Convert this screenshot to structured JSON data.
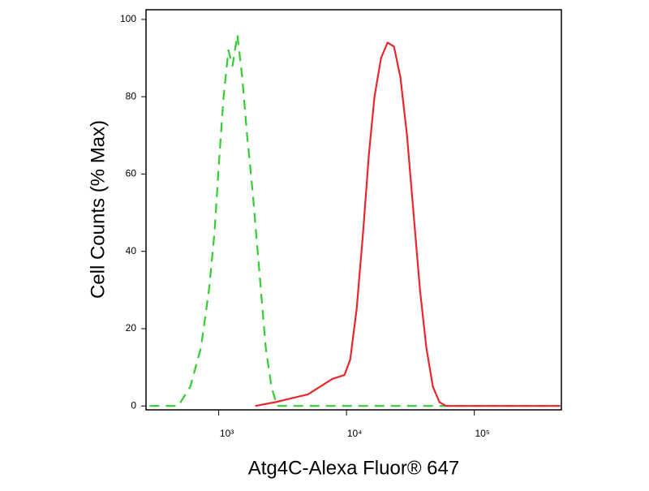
{
  "chart_data": {
    "type": "line",
    "xlabel": "Atg4C-Alexa Fluor® 647",
    "ylabel": "Cell Counts (% Max)",
    "xscale": "log",
    "xlim": [
      270,
      480000
    ],
    "ylim": [
      -1,
      102.5
    ],
    "xticks": [
      {
        "value": 1000,
        "label": "10³"
      },
      {
        "value": 10000,
        "label": "10⁴"
      },
      {
        "value": 100000,
        "label": "10⁵"
      }
    ],
    "yticks": [
      0,
      20,
      40,
      60,
      80,
      100
    ],
    "series": [
      {
        "color": "#33cc33",
        "dash": true,
        "x": [
          288,
          482,
          600,
          725,
          839,
          929,
          1000,
          1092,
          1192,
          1282,
          1400,
          1528,
          1668,
          1849,
          2076,
          2335,
          2588,
          2866,
          470000
        ],
        "values": [
          0,
          0,
          5,
          15,
          30,
          45,
          62,
          80,
          92,
          88,
          96,
          85,
          70,
          55,
          35,
          15,
          5,
          0,
          0
        ]
      },
      {
        "color": "#e8262b",
        "dash": false,
        "x": [
          1931,
          2782,
          3727,
          4993,
          6220,
          7743,
          9640,
          10690,
          12000,
          13490,
          14960,
          16560,
          18620,
          20940,
          23500,
          26420,
          29720,
          33420,
          37580,
          42170,
          47430,
          53330,
          59970,
          470000
        ],
        "values": [
          0,
          1,
          2,
          3,
          5,
          7,
          8,
          12,
          25,
          45,
          65,
          80,
          90,
          94,
          93,
          85,
          70,
          50,
          30,
          15,
          5,
          1,
          0,
          0
        ]
      }
    ]
  }
}
